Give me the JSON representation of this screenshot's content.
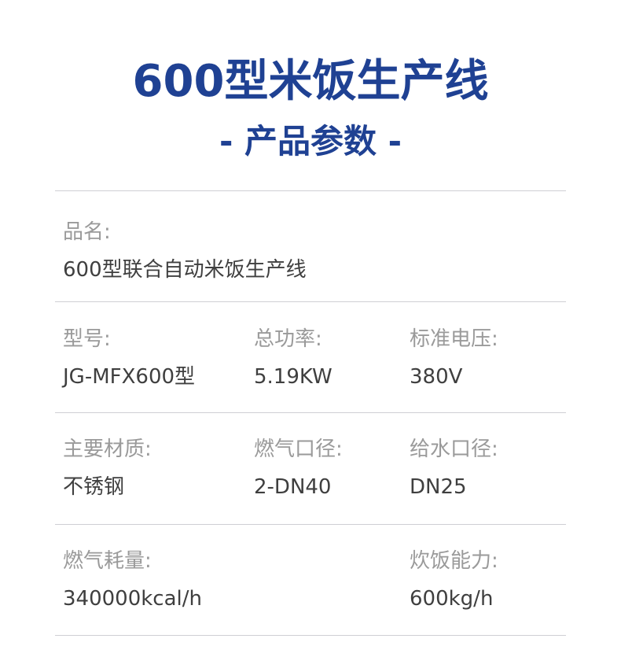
{
  "header": {
    "title": "600型米饭生产线",
    "subtitle": "- 产品参数 -"
  },
  "params": [
    {
      "label": "品名:",
      "value": "600型联合自动米饭生产线"
    },
    {
      "label": "型号:",
      "value": "JG-MFX600型"
    },
    {
      "label": "总功率:",
      "value": "5.19KW"
    },
    {
      "label": "标准电压:",
      "value": "380V"
    },
    {
      "label": "主要材质:",
      "value": "不锈钢"
    },
    {
      "label": "燃气口径:",
      "value": "2-DN40"
    },
    {
      "label": "给水口径:",
      "value": "DN25"
    },
    {
      "label": "燃气耗量:",
      "value": "340000kcal/h"
    },
    {
      "label": "炊饭能力:",
      "value": "600kg/h"
    }
  ],
  "colors": {
    "accent": "#1f4193",
    "label": "#9a9a9a",
    "value": "#3f3f3f"
  }
}
